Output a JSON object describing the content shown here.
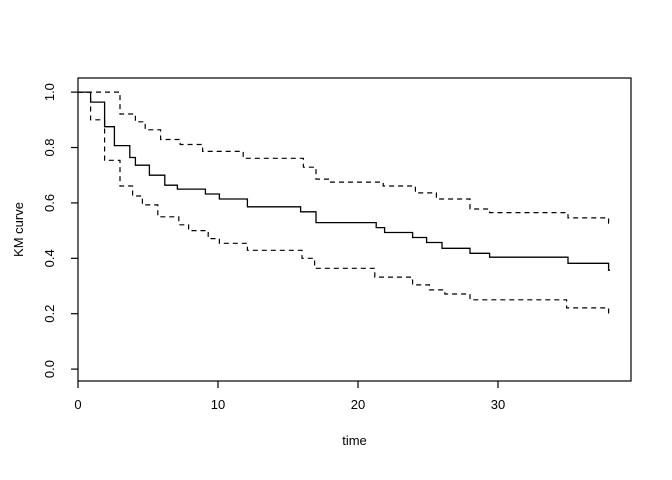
{
  "figure": {
    "background": "#ffffff",
    "line_color": "#000000"
  },
  "chart_data": {
    "type": "line",
    "subtype": "kaplan-meier-step-function",
    "title": "",
    "xlabel": "time",
    "ylabel": "KM curve",
    "xlim": [
      0,
      39.5
    ],
    "ylim": [
      -0.043,
      1.051
    ],
    "grid": false,
    "legend": null,
    "x_ticks": [
      {
        "label": "0",
        "t": 0
      },
      {
        "label": "10",
        "t": 10
      },
      {
        "label": "20",
        "t": 20
      },
      {
        "label": "30",
        "t": 30
      }
    ],
    "y_ticks": [
      {
        "label": "0.0",
        "v": 0.0
      },
      {
        "label": "0.2",
        "v": 0.2
      },
      {
        "label": "0.4",
        "v": 0.4
      },
      {
        "label": "0.6",
        "v": 0.6
      },
      {
        "label": "0.8",
        "v": 0.8
      },
      {
        "label": "1.0",
        "v": 1.0
      }
    ],
    "series": [
      {
        "name": "km-estimate",
        "line_style": "solid",
        "color": "#000000",
        "end_time": 38.0,
        "steps": [
          [
            0.0,
            1.0
          ],
          [
            0.9,
            0.964
          ],
          [
            1.9,
            0.875
          ],
          [
            2.6,
            0.807
          ],
          [
            3.7,
            0.764
          ],
          [
            4.1,
            0.736
          ],
          [
            5.1,
            0.7
          ],
          [
            6.2,
            0.664
          ],
          [
            7.1,
            0.65
          ],
          [
            9.1,
            0.632
          ],
          [
            10.1,
            0.614
          ],
          [
            12.1,
            0.586
          ],
          [
            15.9,
            0.568
          ],
          [
            17.0,
            0.529
          ],
          [
            21.3,
            0.511
          ],
          [
            21.9,
            0.493
          ],
          [
            23.9,
            0.475
          ],
          [
            24.9,
            0.457
          ],
          [
            26.0,
            0.436
          ],
          [
            28.0,
            0.418
          ],
          [
            29.4,
            0.404
          ],
          [
            35.0,
            0.382
          ],
          [
            37.9,
            0.357
          ]
        ]
      },
      {
        "name": "upper-confidence-band",
        "line_style": "dashed",
        "color": "#000000",
        "end_time": 38.0,
        "steps": [
          [
            0.0,
            1.0
          ],
          [
            3.0,
            0.921
          ],
          [
            4.1,
            0.893
          ],
          [
            4.8,
            0.864
          ],
          [
            5.9,
            0.829
          ],
          [
            7.3,
            0.811
          ],
          [
            8.9,
            0.786
          ],
          [
            11.8,
            0.761
          ],
          [
            16.1,
            0.729
          ],
          [
            17.0,
            0.686
          ],
          [
            18.0,
            0.675
          ],
          [
            21.8,
            0.661
          ],
          [
            24.1,
            0.636
          ],
          [
            25.6,
            0.614
          ],
          [
            28.0,
            0.578
          ],
          [
            29.4,
            0.565
          ],
          [
            35.0,
            0.546
          ],
          [
            37.9,
            0.527
          ]
        ]
      },
      {
        "name": "lower-confidence-band",
        "line_style": "dashed",
        "color": "#000000",
        "end_time": 38.0,
        "steps": [
          [
            0.0,
            1.0
          ],
          [
            0.9,
            0.9
          ],
          [
            1.9,
            0.754
          ],
          [
            3.0,
            0.661
          ],
          [
            3.9,
            0.625
          ],
          [
            4.6,
            0.593
          ],
          [
            5.7,
            0.55
          ],
          [
            7.2,
            0.521
          ],
          [
            7.9,
            0.5
          ],
          [
            9.3,
            0.471
          ],
          [
            10.1,
            0.454
          ],
          [
            12.1,
            0.429
          ],
          [
            16.0,
            0.4
          ],
          [
            16.9,
            0.364
          ],
          [
            21.2,
            0.332
          ],
          [
            23.9,
            0.304
          ],
          [
            25.1,
            0.286
          ],
          [
            26.2,
            0.271
          ],
          [
            28.0,
            0.25
          ],
          [
            34.9,
            0.221
          ],
          [
            37.9,
            0.196
          ]
        ]
      }
    ]
  }
}
